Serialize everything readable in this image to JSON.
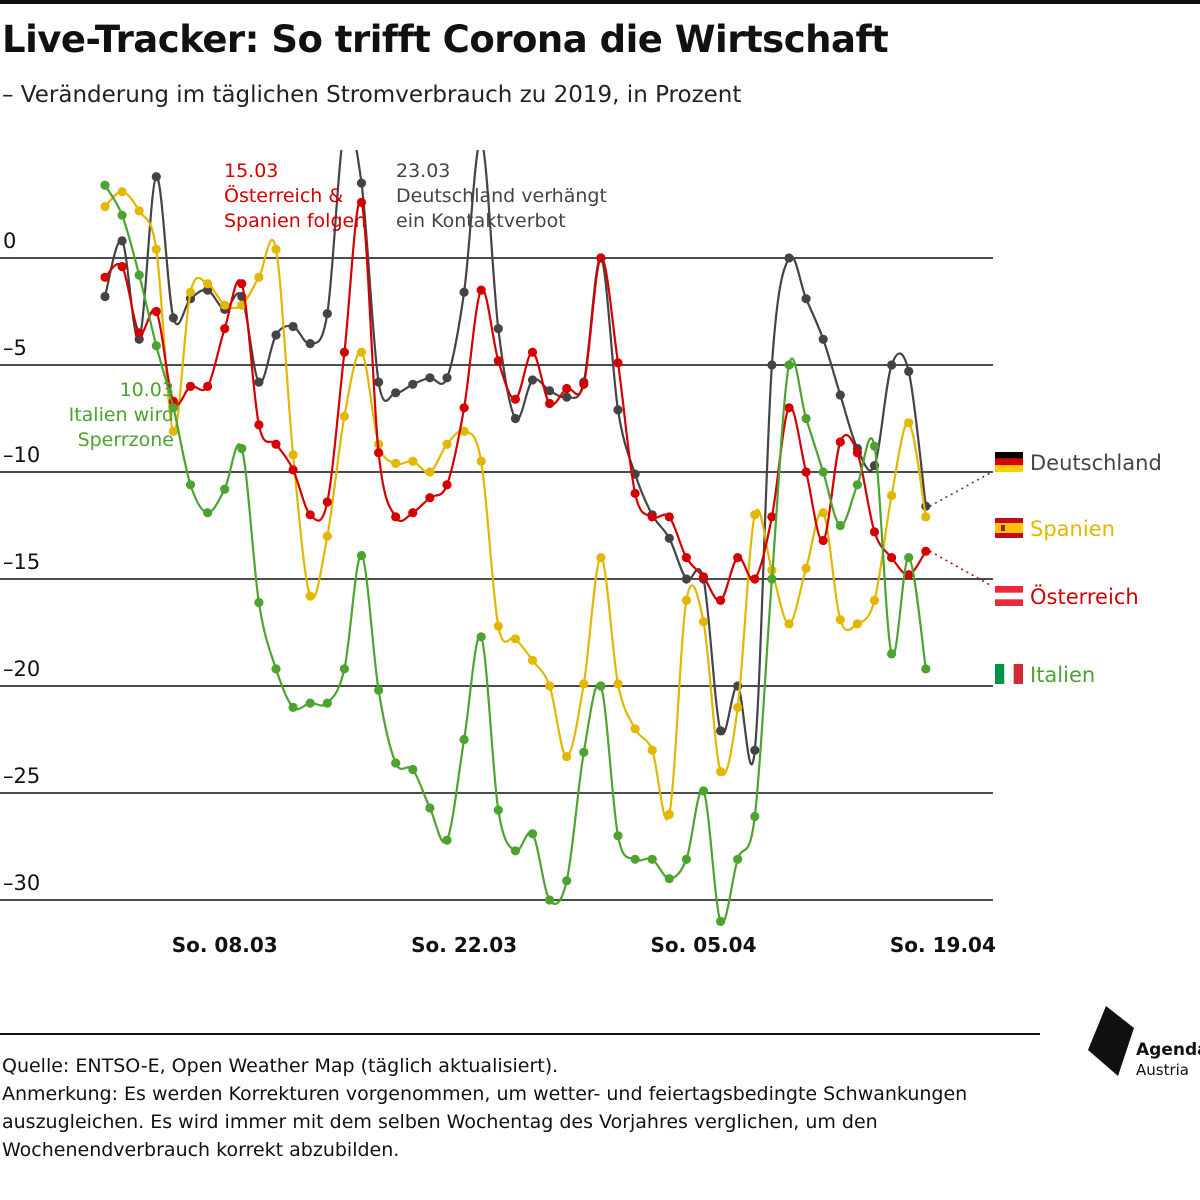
{
  "title": "Live-Tracker: So trifft Corona die Wirtschaft",
  "subtitle": "– Veränderung im täglichen Stromverbrauch zu 2019, in Prozent",
  "footer": {
    "source": "Quelle: ENTSO-E, Open Weather Map (täglich aktualisiert).",
    "note": "Anmerkung: Es werden Korrekturen vorgenommen, um wetter- und feiertagsbedingte Schwankungen auszugleichen. Es wird immer mit dem selben Wochentag des Vorjahres verglichen, um den Wochenendverbrauch korrekt abzubilden."
  },
  "logo": {
    "name": "Agenda",
    "sub": "Austria"
  },
  "chart_data": {
    "type": "line",
    "title": "Live-Tracker: So trifft Corona die Wirtschaft",
    "subtitle": "– Veränderung im täglichen Stromverbrauch zu 2019, in Prozent",
    "x_start": "2020-03-01",
    "x_end": "2020-04-23",
    "x_ticks": [
      {
        "date": "2020-03-08",
        "label": "So. 08.03"
      },
      {
        "date": "2020-03-22",
        "label": "So. 22.03"
      },
      {
        "date": "2020-04-05",
        "label": "So. 05.04"
      },
      {
        "date": "2020-04-19",
        "label": "So. 19.04"
      }
    ],
    "y_ticks": [
      {
        "value": 0,
        "label": "0"
      },
      {
        "value": -5,
        "label": "–5"
      },
      {
        "value": -10,
        "label": "–10"
      },
      {
        "value": -15,
        "label": "–15"
      },
      {
        "value": -20,
        "label": "–20"
      },
      {
        "value": -25,
        "label": "–25"
      },
      {
        "value": -30,
        "label": "–30"
      }
    ],
    "ylim": [
      -31.5,
      4
    ],
    "grid": true,
    "legend": "right",
    "series": [
      {
        "name": "Deutschland",
        "flag": "germany-flag",
        "color": "#444444",
        "values": [
          -1.8,
          0.8,
          -3.8,
          3.8,
          -2.8,
          -1.9,
          -1.5,
          -2.4,
          -1.8,
          -5.8,
          -3.6,
          -3.2,
          -4,
          -2.6,
          6,
          3.5,
          -5.8,
          -6.3,
          -5.9,
          -5.6,
          -5.6,
          -1.6,
          5.5,
          -3.3,
          -7.5,
          -5.7,
          -6.2,
          -6.5,
          -5.8,
          0,
          -7.1,
          -10.1,
          -12,
          -13.1,
          -15,
          -15,
          -22.1,
          -20,
          -23,
          -5,
          0,
          -1.9,
          -3.8,
          -6.4,
          -8.9,
          -9.7,
          -5,
          -5.3,
          -11.6
        ]
      },
      {
        "name": "Spanien",
        "flag": "spain-flag",
        "color": "#e3b600",
        "values": [
          2.4,
          3.1,
          2.2,
          0.4,
          -8.1,
          -1.6,
          -1.2,
          -2.2,
          -2.2,
          -0.9,
          0.4,
          -9.2,
          -15.8,
          -13,
          -7.4,
          -4.4,
          -8.7,
          -9.6,
          -9.5,
          -10,
          -8.7,
          -8.1,
          -9.5,
          -17.2,
          -17.8,
          -18.8,
          -20,
          -23.3,
          -19.9,
          -14,
          -19.9,
          -22,
          -23,
          -26,
          -16,
          -17,
          -24,
          -21,
          -12,
          -14.6,
          -17.1,
          -14.5,
          -11.9,
          -16.9,
          -17.1,
          -16,
          -11.1,
          -7.7,
          -12.1
        ]
      },
      {
        "name": "Österreich",
        "flag": "austria-flag",
        "color": "#d40000",
        "values": [
          -0.9,
          -0.4,
          -3.5,
          -2.5,
          -6.7,
          -6.0,
          -6.0,
          -3.3,
          -1.2,
          -7.8,
          -8.7,
          -9.9,
          -12,
          -11.4,
          -4.4,
          2.6,
          -9.1,
          -12.1,
          -11.9,
          -11.2,
          -10.6,
          -7,
          -1.5,
          -4.8,
          -6.6,
          -4.4,
          -6.8,
          -6.1,
          -5.9,
          0,
          -4.9,
          -11,
          -12.1,
          -12.1,
          -14,
          -14.9,
          -16,
          -14,
          -15,
          -12.1,
          -7,
          -10,
          -13.2,
          -8.6,
          -9.1,
          -12.8,
          -14,
          -14.8,
          -13.7
        ]
      },
      {
        "name": "Italien",
        "flag": "italy-flag",
        "color": "#4ca32f",
        "values": [
          3.4,
          2,
          -0.8,
          -4.1,
          -7,
          -10.6,
          -11.9,
          -10.8,
          -8.9,
          -16.1,
          -19.2,
          -21,
          -20.8,
          -20.8,
          -19.2,
          -13.9,
          -20.2,
          -23.6,
          -23.9,
          -25.7,
          -27.2,
          -22.5,
          -17.7,
          -25.8,
          -27.7,
          -26.9,
          -30,
          -29.1,
          -23.1,
          -20,
          -27,
          -28.1,
          -28.1,
          -29,
          -28.1,
          -24.9,
          -31,
          -28.1,
          -26.1,
          -15,
          -5,
          -7.5,
          -10,
          -12.5,
          -10.6,
          -8.8,
          -18.5,
          -14,
          -19.2
        ]
      }
    ],
    "annotations": [
      {
        "date": "2020-03-10",
        "lines": [
          "10.03",
          "Italien wird",
          "Sperrzone"
        ],
        "color": "#4ca32f"
      },
      {
        "date": "2020-03-15",
        "lines": [
          "15.03",
          "Österreich &",
          "Spanien folgen"
        ],
        "color": "#d40000"
      },
      {
        "date": "2020-03-23",
        "lines": [
          "23.03",
          "Deutschland verhängt",
          "ein Kontaktverbot"
        ],
        "color": "#444444"
      }
    ]
  }
}
